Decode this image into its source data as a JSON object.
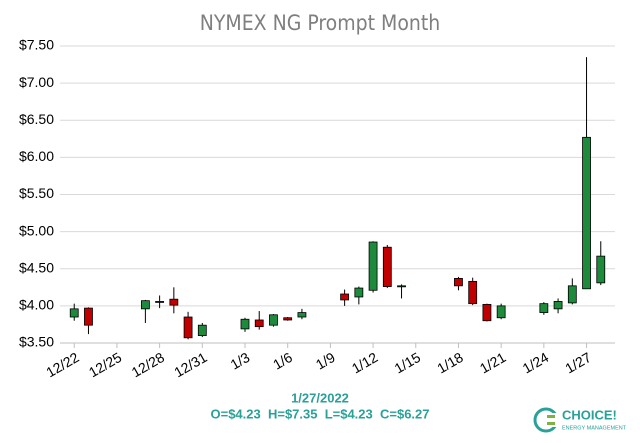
{
  "chart_data": {
    "type": "candlestick",
    "title": "NYMEX NG Prompt Month",
    "x": [
      "12/22",
      "12/23",
      "12/27",
      "12/28",
      "12/29",
      "12/30",
      "12/31",
      "1/3",
      "1/4",
      "1/5",
      "1/6",
      "1/7",
      "1/10",
      "1/11",
      "1/12",
      "1/13",
      "1/14",
      "1/18",
      "1/19",
      "1/20",
      "1/21",
      "1/24",
      "1/25",
      "1/26",
      "1/27",
      "1/28"
    ],
    "open": [
      3.85,
      3.97,
      3.96,
      4.05,
      4.09,
      3.85,
      3.6,
      3.69,
      3.81,
      3.74,
      3.84,
      3.85,
      4.16,
      4.12,
      4.21,
      4.79,
      4.26,
      4.37,
      4.33,
      4.02,
      3.84,
      3.91,
      3.96,
      4.04,
      4.23,
      4.31
    ],
    "high": [
      4.03,
      3.98,
      4.08,
      4.14,
      4.25,
      3.92,
      3.77,
      3.84,
      3.93,
      3.89,
      3.85,
      3.96,
      4.22,
      4.26,
      4.87,
      4.82,
      4.29,
      4.39,
      4.38,
      4.03,
      4.03,
      4.05,
      4.1,
      4.37,
      7.35,
      4.87
    ],
    "low": [
      3.8,
      3.62,
      3.77,
      3.97,
      3.9,
      3.55,
      3.58,
      3.65,
      3.68,
      3.72,
      3.8,
      3.82,
      4.0,
      4.02,
      4.18,
      4.24,
      4.1,
      4.21,
      4.01,
      3.79,
      3.82,
      3.88,
      3.9,
      4.02,
      4.23,
      4.28
    ],
    "close": [
      3.96,
      3.74,
      4.07,
      4.06,
      4.01,
      3.57,
      3.74,
      3.82,
      3.72,
      3.88,
      3.81,
      3.91,
      4.08,
      4.24,
      4.86,
      4.26,
      4.27,
      4.27,
      4.03,
      3.8,
      4.0,
      4.03,
      4.06,
      4.27,
      6.27,
      4.67
    ],
    "up_color": "#1e8a3c",
    "down_color": "#c00000",
    "xlim": [
      "12/21",
      "1/29"
    ],
    "xticks": [
      "12/22",
      "12/25",
      "12/28",
      "12/31",
      "1/3",
      "1/6",
      "1/9",
      "1/12",
      "1/15",
      "1/18",
      "1/21",
      "1/24",
      "1/27"
    ],
    "ylim": [
      3.5,
      7.5
    ],
    "yticks": [
      {
        "value": 3.5,
        "label": "$3.50"
      },
      {
        "value": 4,
        "label": "$4.00"
      },
      {
        "value": 4.5,
        "label": "$4.50"
      },
      {
        "value": 5,
        "label": "$5.00"
      },
      {
        "value": 5.5,
        "label": "$5.50"
      },
      {
        "value": 6,
        "label": "$6.00"
      },
      {
        "value": 6.5,
        "label": "$6.50"
      },
      {
        "value": 7,
        "label": "$7.00"
      },
      {
        "value": 7.5,
        "label": "$7.50"
      }
    ],
    "grid": true
  },
  "info": {
    "date": "1/27/2022",
    "ohlc": "O=$4.23  H=$7.35  L=$4.23  C=$6.27"
  },
  "logo": {
    "name": "CHOICE!",
    "tagline": "ENERGY MANAGEMENT"
  }
}
